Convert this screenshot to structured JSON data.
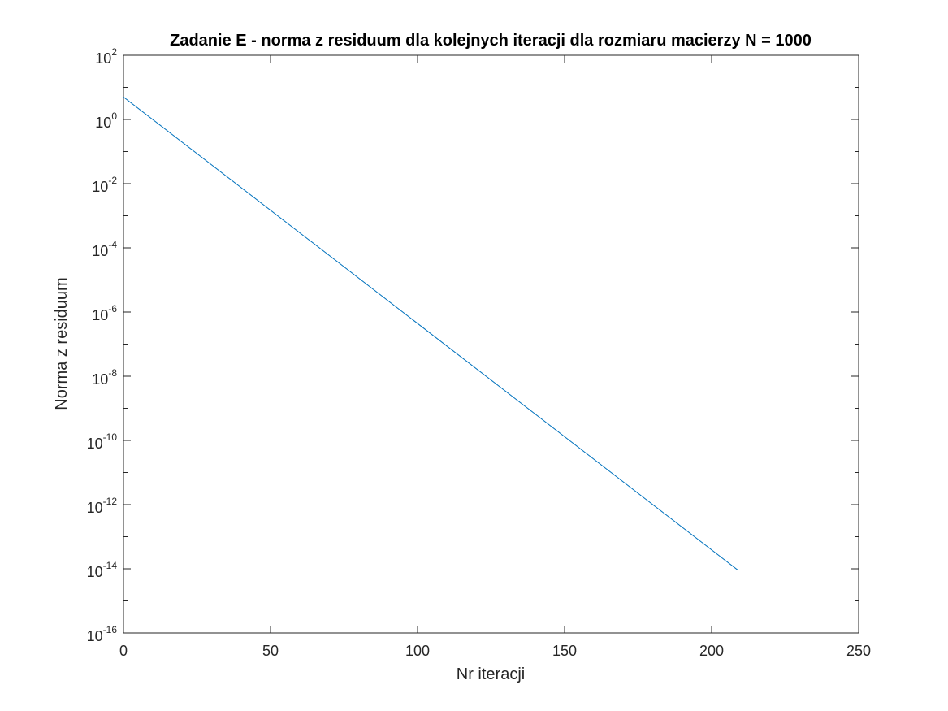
{
  "chart_data": {
    "type": "line",
    "title": "Zadanie E - norma z residuum dla kolejnych iteracji dla rozmiaru macierzy N = 1000",
    "xlabel": "Nr iteracji",
    "ylabel": "Norma z residuum",
    "xlim": [
      0,
      250
    ],
    "ylim": [
      1e-16,
      100
    ],
    "yscale": "log",
    "grid": false,
    "xticks": [
      0,
      50,
      100,
      150,
      200,
      250
    ],
    "xtick_labels": [
      "0",
      "50",
      "100",
      "150",
      "200",
      "250"
    ],
    "yticks": [
      1e-16,
      1e-14,
      1e-12,
      1e-10,
      1e-08,
      1e-06,
      0.0001,
      0.01,
      1,
      100
    ],
    "ytick_base": "10",
    "ytick_exponents": [
      "-16",
      "-14",
      "-12",
      "-10",
      "-8",
      "-6",
      "-4",
      "-2",
      "0",
      "2"
    ],
    "series": [
      {
        "color": "#0072BD",
        "x": [
          0,
          209
        ],
        "y": [
          5,
          9e-15
        ]
      }
    ]
  }
}
